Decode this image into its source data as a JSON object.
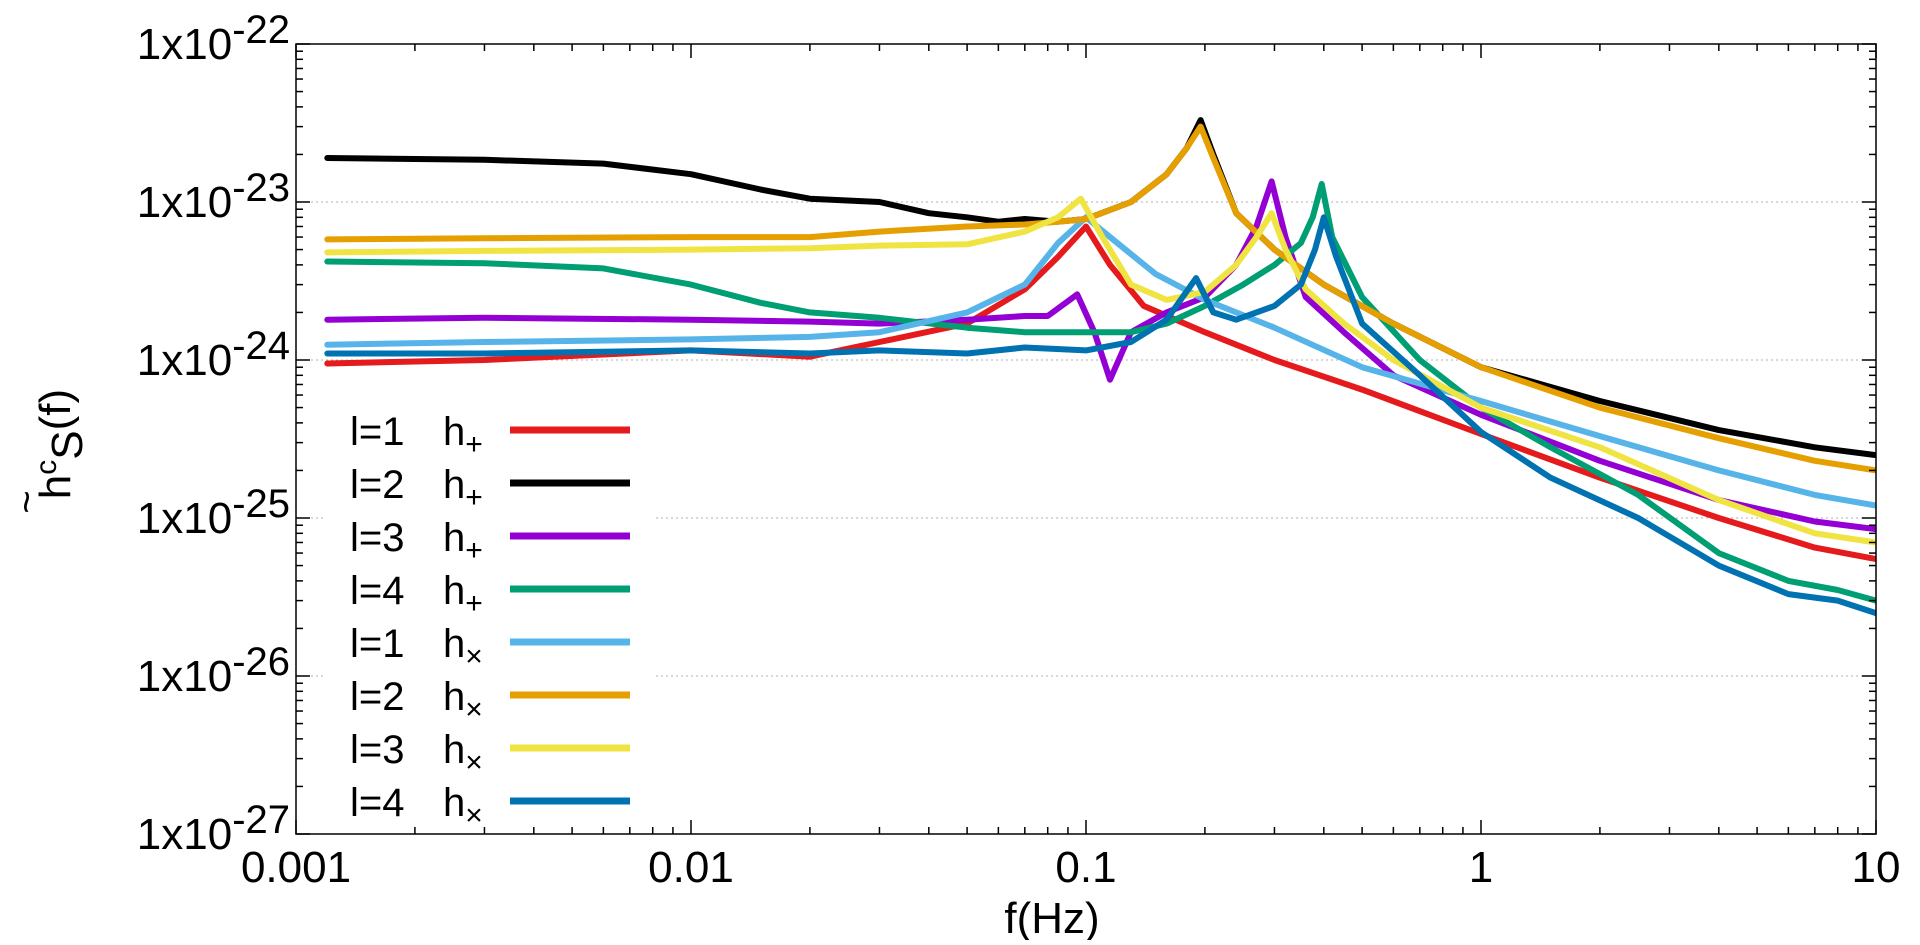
{
  "chart_data": {
    "type": "line",
    "x_scale": "log",
    "y_scale": "log",
    "xlim": [
      0.001,
      10
    ],
    "ylim": [
      1e-27,
      1e-22
    ],
    "grid": "horizontal-dotted",
    "legend_position": "lower-left",
    "xlabel": "f(Hz)",
    "ylabel": {
      "base": "h",
      "accent": "~",
      "sup": "c",
      "sub": "S",
      "tail": "(f)"
    },
    "x_ticks": [
      {
        "value": 0.001,
        "label": "0.001"
      },
      {
        "value": 0.01,
        "label": "0.01"
      },
      {
        "value": 0.1,
        "label": "0.1"
      },
      {
        "value": 1,
        "label": "1"
      },
      {
        "value": 10,
        "label": "10"
      }
    ],
    "y_ticks": [
      {
        "value": 1e-22,
        "mant": "1x10",
        "exp": "-22"
      },
      {
        "value": 1e-23,
        "mant": "1x10",
        "exp": "-23"
      },
      {
        "value": 1e-24,
        "mant": "1x10",
        "exp": "-24"
      },
      {
        "value": 1e-25,
        "mant": "1x10",
        "exp": "-25"
      },
      {
        "value": 1e-26,
        "mant": "1x10",
        "exp": "-26"
      },
      {
        "value": 1e-27,
        "mant": "1x10",
        "exp": "-27"
      }
    ],
    "series": [
      {
        "id": "l1-hplus",
        "name": "l=1  h+",
        "l_text": "l=1",
        "pol": "h",
        "pol_sub": "+",
        "color": "#e41a1c",
        "x": [
          0.0012,
          0.003,
          0.01,
          0.02,
          0.03,
          0.05,
          0.07,
          0.085,
          0.1,
          0.115,
          0.14,
          0.2,
          0.3,
          0.5,
          1,
          2,
          4,
          7,
          10
        ],
        "y": [
          9.5e-25,
          1e-24,
          1.15e-24,
          1.05e-24,
          1.3e-24,
          1.7e-24,
          2.8e-24,
          4.5e-24,
          7e-24,
          4e-24,
          2.2e-24,
          1.5e-24,
          1e-24,
          6.5e-25,
          3.4e-25,
          1.8e-25,
          1e-25,
          6.5e-26,
          5.5e-26
        ]
      },
      {
        "id": "l2-hplus",
        "name": "l=2  h+",
        "l_text": "l=2",
        "pol": "h",
        "pol_sub": "+",
        "color": "#000000",
        "x": [
          0.0012,
          0.003,
          0.006,
          0.01,
          0.015,
          0.02,
          0.03,
          0.04,
          0.05,
          0.06,
          0.07,
          0.085,
          0.1,
          0.13,
          0.16,
          0.18,
          0.195,
          0.21,
          0.24,
          0.3,
          0.4,
          0.6,
          1,
          2,
          4,
          7,
          10
        ],
        "y": [
          1.9e-23,
          1.85e-23,
          1.75e-23,
          1.5e-23,
          1.2e-23,
          1.05e-23,
          1e-23,
          8.5e-24,
          8e-24,
          7.5e-24,
          7.8e-24,
          7.5e-24,
          7.8e-24,
          1e-23,
          1.5e-23,
          2.2e-23,
          3.3e-23,
          2e-23,
          8.5e-24,
          5e-24,
          3e-24,
          1.7e-24,
          9e-25,
          5.5e-25,
          3.6e-25,
          2.8e-25,
          2.5e-25
        ]
      },
      {
        "id": "l3-hplus",
        "name": "l=3  h+",
        "l_text": "l=3",
        "pol": "h",
        "pol_sub": "+",
        "color": "#9400d3",
        "x": [
          0.0012,
          0.003,
          0.01,
          0.02,
          0.03,
          0.05,
          0.07,
          0.08,
          0.095,
          0.105,
          0.115,
          0.13,
          0.16,
          0.2,
          0.24,
          0.27,
          0.295,
          0.32,
          0.36,
          0.45,
          0.6,
          1,
          2,
          4,
          7,
          10
        ],
        "y": [
          1.8e-24,
          1.85e-24,
          1.8e-24,
          1.75e-24,
          1.7e-24,
          1.8e-24,
          1.9e-24,
          1.9e-24,
          2.6e-24,
          1.5e-24,
          7.5e-25,
          1.5e-24,
          2e-24,
          2.5e-24,
          4e-24,
          7e-24,
          1.35e-23,
          6e-24,
          2.5e-24,
          1.5e-24,
          8e-25,
          4.5e-25,
          2.3e-25,
          1.3e-25,
          9.5e-26,
          8.5e-26
        ]
      },
      {
        "id": "l4-hplus",
        "name": "l=4  h+",
        "l_text": "l=4",
        "pol": "h",
        "pol_sub": "+",
        "color": "#009e73",
        "x": [
          0.0012,
          0.003,
          0.006,
          0.01,
          0.015,
          0.02,
          0.03,
          0.05,
          0.07,
          0.1,
          0.13,
          0.16,
          0.2,
          0.25,
          0.3,
          0.35,
          0.375,
          0.395,
          0.42,
          0.5,
          0.7,
          1,
          1.5,
          2.5,
          4,
          6,
          8,
          10
        ],
        "y": [
          4.2e-24,
          4.1e-24,
          3.8e-24,
          3e-24,
          2.3e-24,
          2e-24,
          1.85e-24,
          1.6e-24,
          1.5e-24,
          1.5e-24,
          1.5e-24,
          1.7e-24,
          2.2e-24,
          3e-24,
          4e-24,
          5.5e-24,
          8e-24,
          1.3e-23,
          6e-24,
          2.5e-24,
          1e-24,
          5e-25,
          2.8e-25,
          1.4e-25,
          6e-26,
          4e-26,
          3.5e-26,
          3e-26
        ]
      },
      {
        "id": "l1-hcross",
        "name": "l=1  h×",
        "l_text": "l=1",
        "pol": "h",
        "pol_sub": "×",
        "color": "#56b4e9",
        "x": [
          0.0012,
          0.003,
          0.01,
          0.02,
          0.03,
          0.05,
          0.07,
          0.085,
          0.1,
          0.12,
          0.15,
          0.2,
          0.3,
          0.5,
          1,
          2,
          4,
          7,
          10
        ],
        "y": [
          1.25e-24,
          1.3e-24,
          1.35e-24,
          1.4e-24,
          1.5e-24,
          2e-24,
          3e-24,
          5.5e-24,
          8e-24,
          5.5e-24,
          3.5e-24,
          2.4e-24,
          1.6e-24,
          9e-25,
          5.5e-25,
          3.3e-25,
          2e-25,
          1.4e-25,
          1.2e-25
        ]
      },
      {
        "id": "l2-hcross",
        "name": "l=2  h×",
        "l_text": "l=2",
        "pol": "h",
        "pol_sub": "×",
        "color": "#e69f00",
        "x": [
          0.0012,
          0.003,
          0.01,
          0.02,
          0.03,
          0.05,
          0.07,
          0.085,
          0.1,
          0.13,
          0.16,
          0.18,
          0.195,
          0.21,
          0.24,
          0.3,
          0.4,
          0.6,
          1,
          2,
          4,
          7,
          10
        ],
        "y": [
          5.8e-24,
          5.9e-24,
          6e-24,
          6e-24,
          6.5e-24,
          7e-24,
          7.2e-24,
          7.5e-24,
          7.8e-24,
          1e-23,
          1.5e-23,
          2.2e-23,
          3e-23,
          1.9e-23,
          8.5e-24,
          5e-24,
          3e-24,
          1.7e-24,
          9e-25,
          5e-25,
          3.2e-25,
          2.3e-25,
          2e-25
        ]
      },
      {
        "id": "l3-hcross",
        "name": "l=3  h×",
        "l_text": "l=3",
        "pol": "h",
        "pol_sub": "×",
        "color": "#f0e442",
        "x": [
          0.0012,
          0.003,
          0.01,
          0.02,
          0.03,
          0.05,
          0.07,
          0.085,
          0.097,
          0.11,
          0.13,
          0.16,
          0.2,
          0.24,
          0.27,
          0.295,
          0.32,
          0.36,
          0.45,
          0.6,
          1,
          2,
          4,
          7,
          10
        ],
        "y": [
          4.8e-24,
          4.9e-24,
          5e-24,
          5.1e-24,
          5.3e-24,
          5.4e-24,
          6.5e-24,
          8e-24,
          1.05e-23,
          6e-24,
          3e-24,
          2.4e-24,
          2.7e-24,
          4e-24,
          6e-24,
          8.5e-24,
          5e-24,
          2.8e-24,
          1.7e-24,
          1e-24,
          5e-25,
          2.8e-25,
          1.3e-25,
          8e-26,
          7e-26
        ]
      },
      {
        "id": "l4-hcross",
        "name": "l=4  h×",
        "l_text": "l=4",
        "pol": "h",
        "pol_sub": "×",
        "color": "#0072b2",
        "x": [
          0.0012,
          0.003,
          0.01,
          0.02,
          0.03,
          0.05,
          0.07,
          0.1,
          0.13,
          0.16,
          0.19,
          0.21,
          0.24,
          0.3,
          0.35,
          0.38,
          0.4,
          0.43,
          0.5,
          0.7,
          1,
          1.5,
          2.5,
          4,
          6,
          8,
          10
        ],
        "y": [
          1.1e-24,
          1.1e-24,
          1.15e-24,
          1.1e-24,
          1.15e-24,
          1.1e-24,
          1.2e-24,
          1.15e-24,
          1.3e-24,
          1.8e-24,
          3.3e-24,
          2e-24,
          1.8e-24,
          2.2e-24,
          3e-24,
          5e-24,
          8e-24,
          4.5e-24,
          1.7e-24,
          8e-25,
          3.5e-25,
          1.8e-25,
          1e-25,
          5e-26,
          3.3e-26,
          3e-26,
          2.5e-26
        ]
      }
    ]
  }
}
